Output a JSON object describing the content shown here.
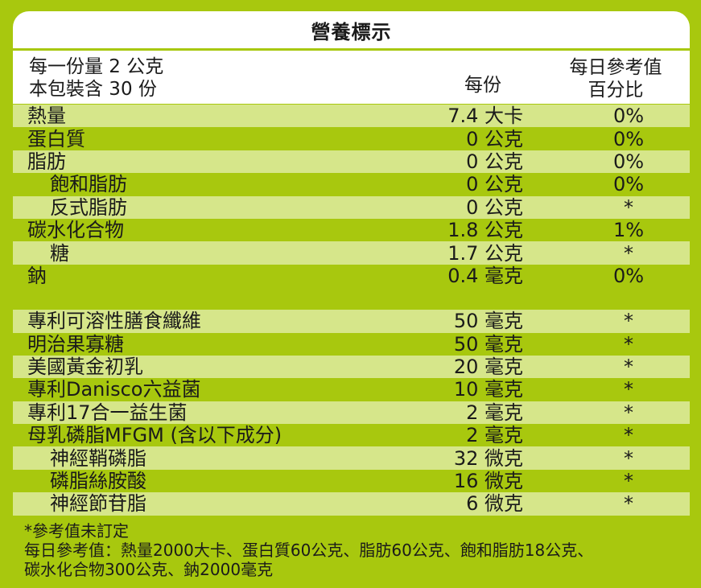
{
  "title": "營養標示",
  "serving": {
    "line1": "每一份量  2  公克",
    "line2": "本包裝含 30 份"
  },
  "columns": {
    "per_serving": "每份",
    "daily_value_line1": "每日參考值",
    "daily_value_line2": "百分比"
  },
  "nutrients": [
    {
      "name": "熱量",
      "amount": "7.4 大卡",
      "dv": "0%",
      "indent": false,
      "light": true
    },
    {
      "name": "蛋白質",
      "amount": "0 公克",
      "dv": "0%",
      "indent": false,
      "light": false
    },
    {
      "name": "脂肪",
      "amount": "0 公克",
      "dv": "0%",
      "indent": false,
      "light": true
    },
    {
      "name": "飽和脂肪",
      "amount": "0 公克",
      "dv": "0%",
      "indent": true,
      "light": false
    },
    {
      "name": "反式脂肪",
      "amount": "0 公克",
      "dv": "*",
      "indent": true,
      "light": true
    },
    {
      "name": "碳水化合物",
      "amount": "1.8 公克",
      "dv": "1%",
      "indent": false,
      "light": false
    },
    {
      "name": "糖",
      "amount": "1.7 公克",
      "dv": "*",
      "indent": true,
      "light": true
    },
    {
      "name": "鈉",
      "amount": "0.4 毫克",
      "dv": "0%",
      "indent": false,
      "light": false
    }
  ],
  "ingredients": [
    {
      "name": "專利可溶性膳食纖維",
      "amount": "50 毫克",
      "dv": "*",
      "indent": false,
      "light": true
    },
    {
      "name": "明治果寡糖",
      "amount": "50 毫克",
      "dv": "*",
      "indent": false,
      "light": false
    },
    {
      "name": "美國黃金初乳",
      "amount": "20 毫克",
      "dv": "*",
      "indent": false,
      "light": true
    },
    {
      "name": "專利Danisco六益菌",
      "amount": "10 毫克",
      "dv": "*",
      "indent": false,
      "light": false
    },
    {
      "name": "專利17合一益生菌",
      "amount": "2 毫克",
      "dv": "*",
      "indent": false,
      "light": true
    },
    {
      "name": "母乳磷脂MFGM (含以下成分)",
      "amount": "2 毫克",
      "dv": "*",
      "indent": false,
      "light": false
    },
    {
      "name": "神經鞘磷脂",
      "amount": "32 微克",
      "dv": "*",
      "indent": true,
      "light": true
    },
    {
      "name": "磷脂絲胺酸",
      "amount": "16 微克",
      "dv": "*",
      "indent": true,
      "light": false
    },
    {
      "name": "神經節苷脂",
      "amount": "6 微克",
      "dv": "*",
      "indent": true,
      "light": true
    }
  ],
  "footnotes": {
    "line1": "*參考值未訂定",
    "line2": "每日參考值：熱量2000大卡、蛋白質60公克、脂肪60公克、飽和脂肪18公克、",
    "line3": "碳水化合物300公克、鈉2000毫克"
  },
  "colors": {
    "background_green": "#a8c80e",
    "row_light": "#d6e68a",
    "header_white": "#ffffff"
  }
}
